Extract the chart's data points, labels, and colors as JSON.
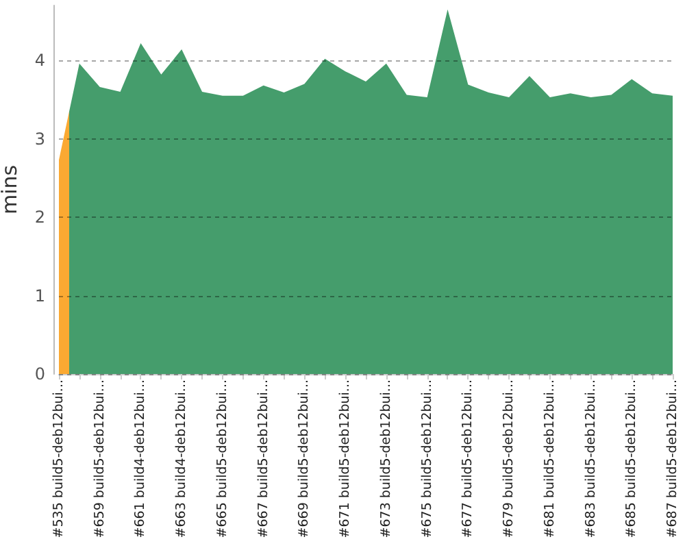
{
  "chart_data": {
    "type": "area",
    "ylabel": "mins",
    "categories": [
      "#535 build5-deb12bui...",
      null,
      "#659 build5-deb12bui...",
      null,
      "#661 build4-deb12bui...",
      null,
      "#663 build4-deb12bui...",
      null,
      "#665 build5-deb12bui...",
      null,
      "#667 build5-deb12bui...",
      null,
      "#669 build5-deb12bui...",
      null,
      "#671 build5-deb12bui...",
      null,
      "#673 build5-deb12bui...",
      null,
      "#675 build5-deb12bui...",
      null,
      "#677 build5-deb12bui...",
      null,
      "#679 build5-deb12bui...",
      null,
      "#681 build5-deb12bui...",
      null,
      "#683 build5-deb12bui...",
      null,
      "#685 build5-deb12bui...",
      null,
      "#687 build5-deb12bui..."
    ],
    "values": [
      2.73,
      3.96,
      3.66,
      3.6,
      4.22,
      3.82,
      4.14,
      3.6,
      3.55,
      3.55,
      3.68,
      3.59,
      3.7,
      4.02,
      3.86,
      3.73,
      3.96,
      3.56,
      3.53,
      4.65,
      3.69,
      3.59,
      3.53,
      3.8,
      3.53,
      3.58,
      3.53,
      3.56,
      3.76,
      3.58,
      3.55
    ],
    "colors": [
      "#fba932",
      "#459d6c",
      "#459d6c",
      "#459d6c",
      "#459d6c",
      "#459d6c",
      "#459d6c",
      "#459d6c",
      "#459d6c",
      "#459d6c",
      "#459d6c",
      "#459d6c",
      "#459d6c",
      "#459d6c",
      "#459d6c",
      "#459d6c",
      "#459d6c",
      "#459d6c",
      "#459d6c",
      "#459d6c",
      "#459d6c",
      "#459d6c",
      "#459d6c",
      "#459d6c",
      "#459d6c",
      "#459d6c",
      "#459d6c",
      "#459d6c",
      "#459d6c",
      "#459d6c",
      "#459d6c"
    ],
    "ylim": [
      0,
      4.7
    ],
    "yticks": [
      0,
      1,
      2,
      3,
      4
    ],
    "grid": "y"
  }
}
